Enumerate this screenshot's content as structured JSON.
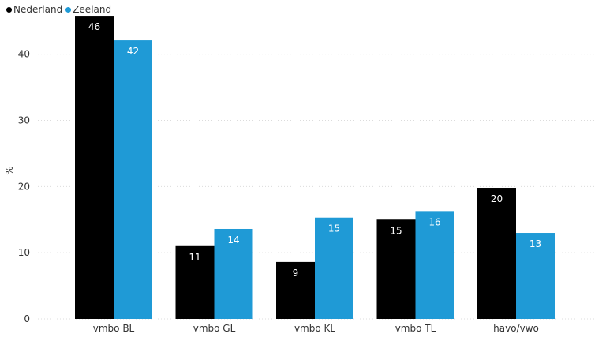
{
  "chart_data": {
    "type": "bar",
    "title": "",
    "xlabel": "",
    "ylabel": "%",
    "ylim": [
      0,
      47
    ],
    "yticks": [
      0,
      10,
      20,
      30,
      40
    ],
    "grid": true,
    "legend_position": "top-left",
    "categories": [
      "vmbo BL",
      "vmbo GL",
      "vmbo KL",
      "vmbo TL",
      "havo/vwo"
    ],
    "series": [
      {
        "name": "Nederland",
        "color": "#000000",
        "label_color": "#ffffff",
        "values": [
          45.8,
          11.0,
          8.6,
          15.0,
          19.8
        ],
        "labels": [
          "46",
          "11",
          "9",
          "15",
          "20"
        ]
      },
      {
        "name": "Zeeland",
        "color": "#1f9ad6",
        "label_color": "#ffffff",
        "values": [
          42.1,
          13.6,
          15.3,
          16.3,
          13.0
        ],
        "labels": [
          "42",
          "14",
          "15",
          "16",
          "13"
        ]
      }
    ]
  }
}
